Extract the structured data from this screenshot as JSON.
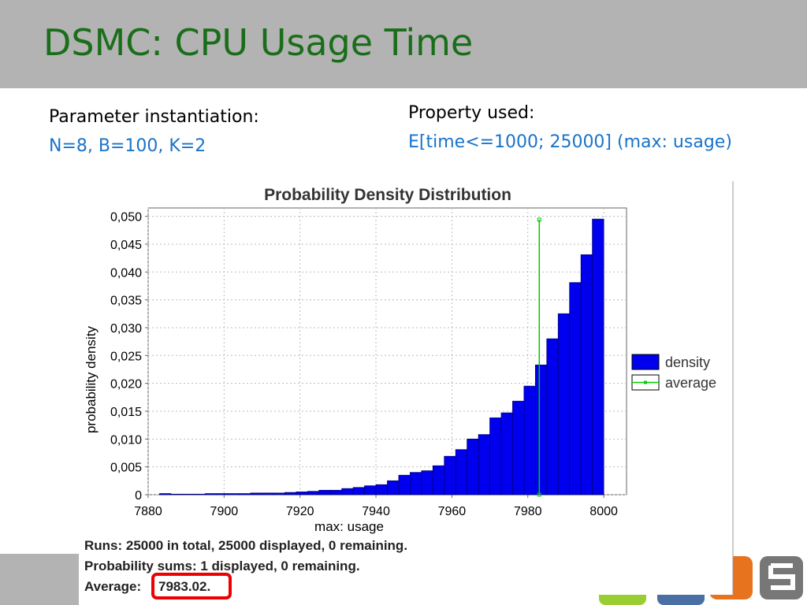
{
  "slide": {
    "title": "DSMC: CPU Usage Time",
    "param_heading": "Parameter instantiation:",
    "param_value": "N=8, B=100, K=2",
    "property_heading": "Property used:",
    "property_value": "E[time<=1000; 25000] (max: usage)"
  },
  "chart_data": {
    "type": "histogram",
    "title": "Probability Density Distribution",
    "x_label": "max: usage",
    "y_label": "probability density",
    "bins": [
      7883,
      7886,
      7889,
      7892,
      7895,
      7898,
      7901,
      7904,
      7907,
      7910,
      7913,
      7916,
      7919,
      7922,
      7925,
      7928,
      7931,
      7934,
      7937,
      7940,
      7943,
      7946,
      7949,
      7952,
      7955,
      7958,
      7961,
      7964,
      7967,
      7970,
      7973,
      7976,
      7979,
      7982,
      7985,
      7988,
      7991,
      7994,
      7997,
      8000
    ],
    "series": [
      {
        "name": "density",
        "color": "#0000ee",
        "values": [
          0.0002,
          0.0001,
          0.0001,
          0.0001,
          0.0002,
          0.0002,
          0.0002,
          0.0002,
          0.0003,
          0.0003,
          0.0003,
          0.0004,
          0.0005,
          0.0006,
          0.0008,
          0.0008,
          0.0011,
          0.0013,
          0.0016,
          0.0018,
          0.0025,
          0.0035,
          0.004,
          0.0043,
          0.0052,
          0.0069,
          0.0081,
          0.01,
          0.0108,
          0.0138,
          0.0147,
          0.0168,
          0.0195,
          0.0233,
          0.028,
          0.0325,
          0.0381,
          0.0431,
          0.0495
        ]
      },
      {
        "name": "average",
        "color": "#00cc00",
        "x": 7983.02,
        "y": [
          0,
          0.0494
        ]
      }
    ],
    "xlim": [
      7880,
      8006
    ],
    "ylim": [
      0,
      0.0515
    ],
    "xticks": [
      7880,
      7900,
      7920,
      7940,
      7960,
      7980,
      8000
    ],
    "yticks": [
      0,
      {
        "value": 0.005,
        "label": "0,005"
      },
      {
        "value": 0.01,
        "label": "0,010"
      },
      {
        "value": 0.015,
        "label": "0,015"
      },
      {
        "value": 0.02,
        "label": "0,020"
      },
      {
        "value": 0.025,
        "label": "0,025"
      },
      {
        "value": 0.03,
        "label": "0,030"
      },
      {
        "value": 0.035,
        "label": "0,035"
      },
      {
        "value": 0.04,
        "label": "0,040"
      },
      {
        "value": 0.045,
        "label": "0,045"
      },
      {
        "value": 0.05,
        "label": "0,050"
      }
    ],
    "grid": true,
    "legend": "right"
  },
  "report": {
    "runs": "Runs: 25000 in total, 25000 displayed, 0 remaining.",
    "sums": "Probability sums: 1 displayed, 0 remaining.",
    "average_label": "Average:",
    "average_value": "7983.02."
  }
}
